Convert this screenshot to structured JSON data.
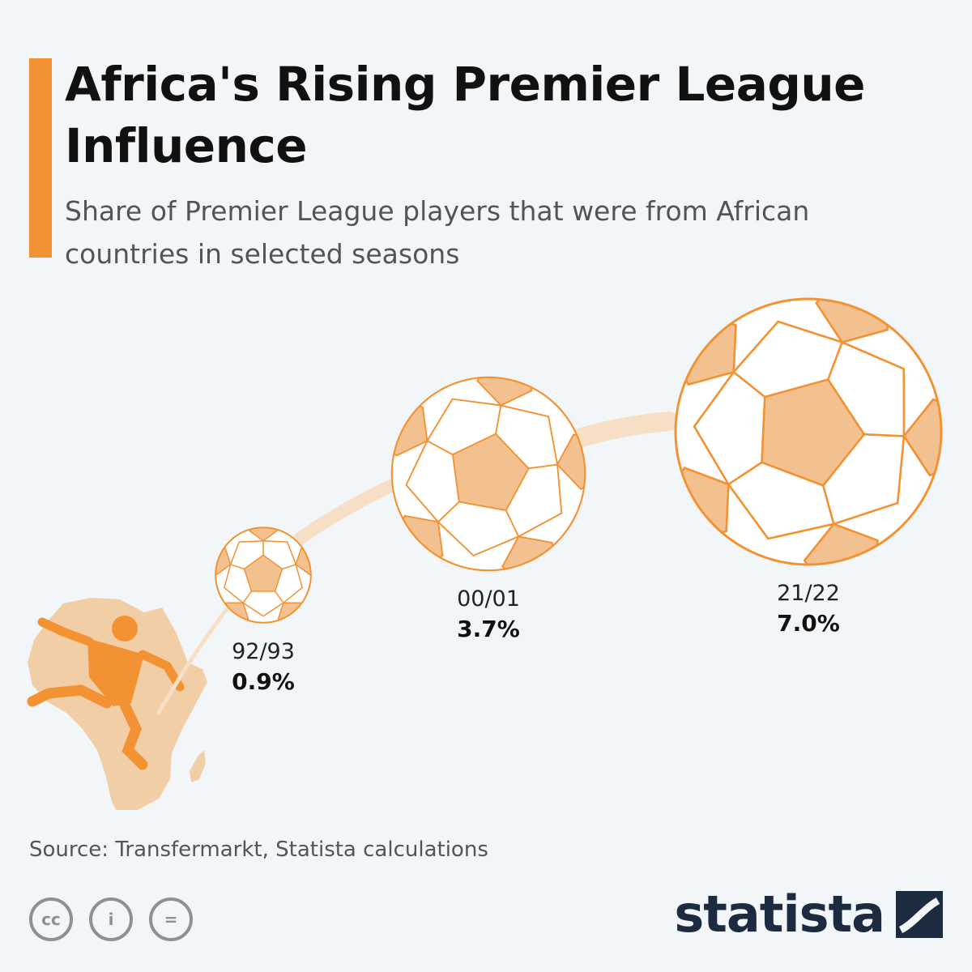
{
  "header": {
    "title": "Africa's Rising Premier League Influence",
    "subtitle": "Share of Premier League players that were from African countries in selected seasons"
  },
  "chart_data": {
    "type": "bubble",
    "categories": [
      "92/93",
      "00/01",
      "21/22"
    ],
    "values": [
      0.9,
      3.7,
      7.0
    ],
    "value_labels": [
      "0.9%",
      "3.7%",
      "7.0%"
    ],
    "unit": "%",
    "marker": "soccer-ball"
  },
  "footer": {
    "source": "Source: Transfermarkt, Statista calculations",
    "license_icons": [
      "cc-icon",
      "attribution-icon",
      "no-derivatives-icon"
    ],
    "license_glyphs": [
      "cc",
      "i",
      "="
    ],
    "logo_text": "statista"
  },
  "colors": {
    "accent": "#f39233",
    "ball_fill": "#f3c18f",
    "trail": "#f7dfc6",
    "africa": "#f2cea6",
    "player": "#f39233",
    "logo": "#1d2b41"
  }
}
